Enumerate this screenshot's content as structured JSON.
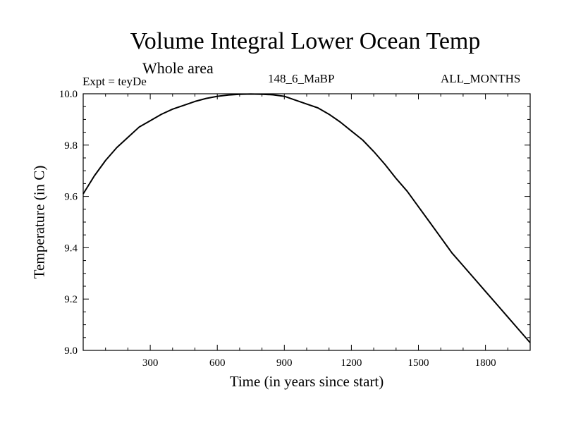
{
  "chart_data": {
    "type": "line",
    "title": "Volume Integral Lower Ocean Temp",
    "subtitle": "Whole area",
    "experiment": "Expt = teyDe",
    "center_label": "148_6_MaBP",
    "right_label": "ALL_MONTHS",
    "xlabel": "Time (in years since start)",
    "ylabel": "Temperature (in C)",
    "xlim": [
      0,
      2000
    ],
    "ylim": [
      9.0,
      10.0
    ],
    "x_ticks": [
      300,
      600,
      900,
      1200,
      1500,
      1800
    ],
    "x_tick_labels": [
      "300",
      "600",
      "900",
      "1200",
      "1500",
      "1800"
    ],
    "y_ticks": [
      9.0,
      9.2,
      9.4,
      9.6,
      9.8,
      10.0
    ],
    "y_tick_labels": [
      "9.0",
      "9.2",
      "9.4",
      "9.6",
      "9.8",
      "10.0"
    ],
    "grid": false,
    "series": [
      {
        "name": "Temperature",
        "x": [
          0,
          50,
          100,
          150,
          200,
          250,
          300,
          350,
          400,
          450,
          500,
          550,
          600,
          650,
          700,
          750,
          800,
          850,
          900,
          950,
          1000,
          1050,
          1100,
          1150,
          1200,
          1250,
          1300,
          1350,
          1400,
          1450,
          1500,
          1550,
          1600,
          1650,
          1700,
          1750,
          1800,
          1850,
          1900,
          1950,
          2000
        ],
        "values": [
          9.61,
          9.68,
          9.74,
          9.79,
          9.83,
          9.87,
          9.895,
          9.92,
          9.94,
          9.955,
          9.97,
          9.982,
          9.99,
          9.995,
          9.998,
          9.999,
          9.998,
          9.996,
          9.99,
          9.975,
          9.96,
          9.945,
          9.92,
          9.89,
          9.855,
          9.82,
          9.775,
          9.725,
          9.67,
          9.62,
          9.56,
          9.5,
          9.44,
          9.38,
          9.33,
          9.28,
          9.23,
          9.18,
          9.13,
          9.08,
          9.03
        ]
      }
    ]
  }
}
